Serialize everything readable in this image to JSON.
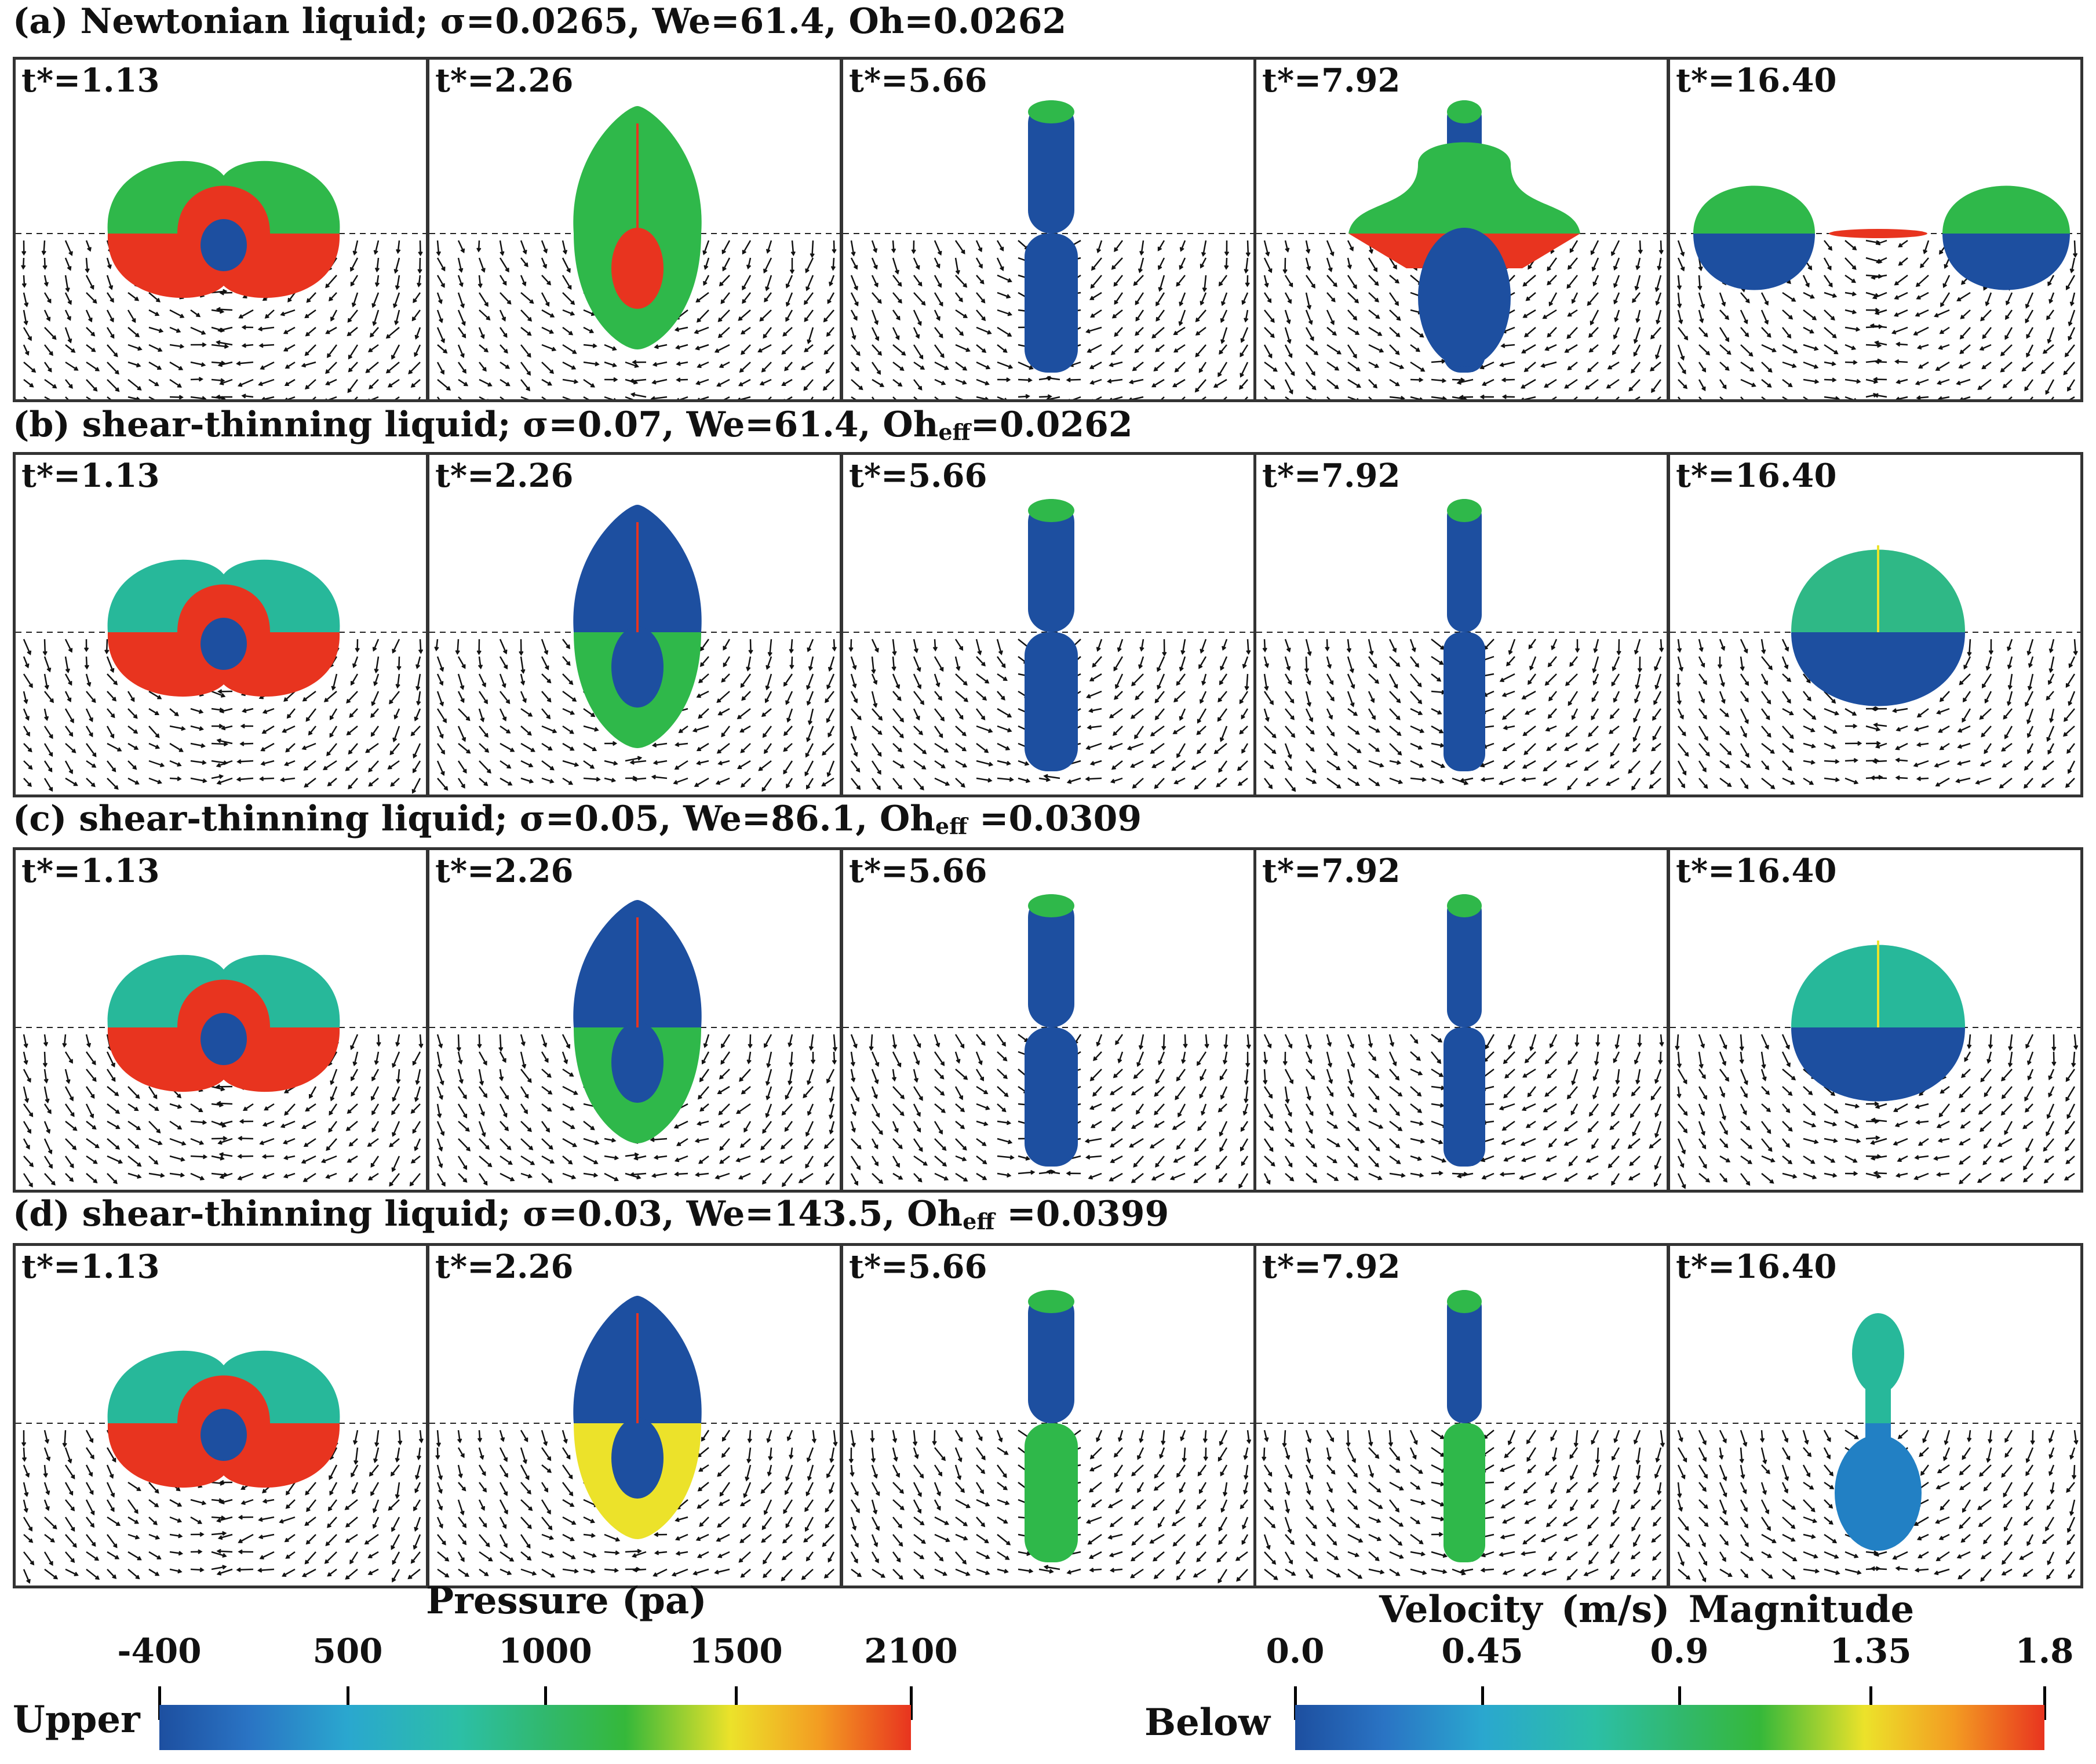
{
  "rows": [
    {
      "title_main": "(a) Newtonian liquid; σ=0.0265, We=61.4, Oh=0.0262",
      "oh_sub": "",
      "title_tail": ""
    },
    {
      "title_main": "(b) shear-thinning liquid; σ=0.07, We=61.4, Oh",
      "oh_sub": "eff",
      "title_tail": "=0.0262"
    },
    {
      "title_main": "(c) shear-thinning liquid; σ=0.05, We=86.1, Oh",
      "oh_sub": "eff",
      "title_tail": " =0.0309"
    },
    {
      "title_main": "(d) shear-thinning liquid; σ=0.03, We=143.5, Oh",
      "oh_sub": "eff",
      "title_tail": " =0.0399"
    }
  ],
  "times": [
    "t*=1.13",
    "t*=2.26",
    "t*=5.66",
    "t*=7.92",
    "t*=16.40"
  ],
  "pressure": {
    "title": "Pressure (pa)",
    "label": "Upper",
    "ticks": [
      "-400",
      "500",
      "1000",
      "1500",
      "2100"
    ]
  },
  "velocity": {
    "title": "Velocity (m/s)   Magnitude",
    "label": "Below",
    "ticks": [
      "0.0",
      "0.45",
      "0.9",
      "1.35",
      "1.8"
    ]
  },
  "colors": {
    "blue": "#1d4fa0",
    "cyan": "#2aa7cf",
    "teal": "#27b89a",
    "green": "#2fb84a",
    "yellow": "#ece22a",
    "red": "#e8341f"
  }
}
